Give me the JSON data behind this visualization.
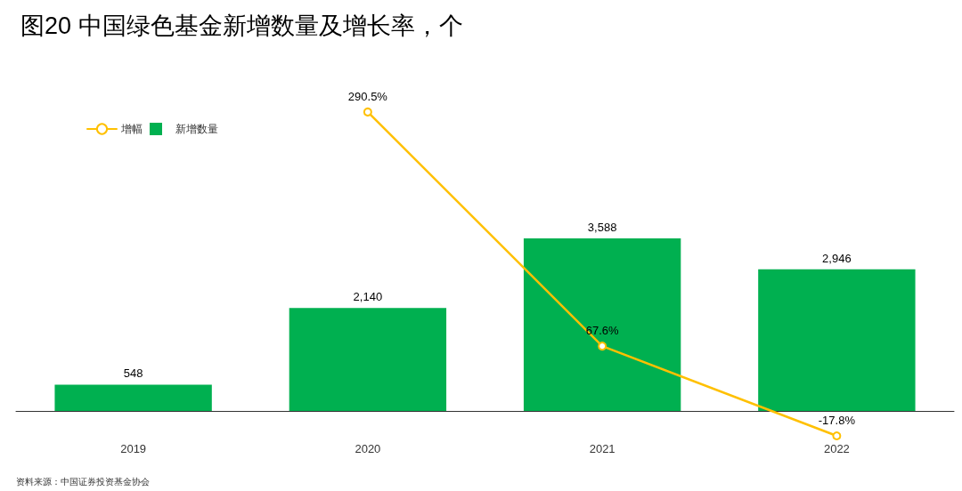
{
  "chart_data": {
    "type": "bar",
    "title": "图20 中国绿色基金新增数量及增长率，个",
    "annotations": [
      "资料来源：中国证券投资基金协会"
    ],
    "categories": [
      "2019",
      "2020",
      "2021",
      "2022"
    ],
    "series": [
      {
        "name": "增幅",
        "type": "line",
        "color": "#ffc000",
        "values": [
          null,
          290.5,
          67.6,
          -17.8
        ],
        "value_labels": [
          null,
          "290.5%",
          "67.6%",
          "-17.8%"
        ]
      },
      {
        "name": "新增数量",
        "axis": "y2",
        "color": "#00b050",
        "values": [
          548,
          2140,
          3588,
          2946
        ],
        "value_labels": [
          "548",
          "2,140",
          "3,588",
          "2,946"
        ]
      }
    ],
    "legend": "top left",
    "marker": "circle",
    "line_style": "solid",
    "tick_labels": "x"
  }
}
